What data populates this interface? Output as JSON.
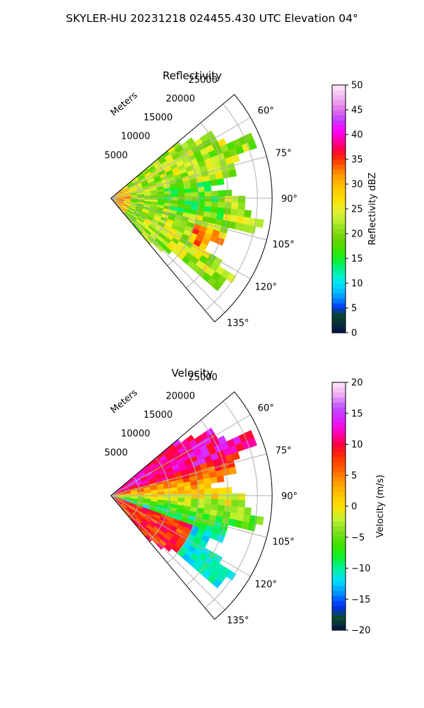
{
  "figure": {
    "title": "SKYLER-HU  20231218  024455.430 UTC Elevation 04°"
  },
  "chart_data": [
    {
      "type": "heatmap",
      "projection": "polar-sector",
      "title": "Reflectivity",
      "range_label": "Meters",
      "range_ticks": [
        "5000",
        "10000",
        "15000",
        "20000",
        "25000"
      ],
      "range_tick_values": [
        5000,
        10000,
        15000,
        20000,
        25000
      ],
      "rmax": 27500,
      "azimuth_ticks": [
        "60°",
        "75°",
        "90°",
        "105°",
        "120°",
        "135°"
      ],
      "azimuth_tick_values": [
        60,
        75,
        90,
        105,
        120,
        135
      ],
      "azimuth_range": [
        50,
        140
      ],
      "grid": true,
      "colorbar": {
        "label": "Reflectivity dBZ",
        "min": 0,
        "max": 50,
        "tick_values": [
          0,
          5,
          10,
          15,
          20,
          25,
          30,
          35,
          40,
          45,
          50
        ],
        "tick_labels": [
          "0",
          "5",
          "10",
          "15",
          "20",
          "25",
          "30",
          "35",
          "40",
          "45",
          "50"
        ],
        "stops": [
          [
            0,
            "#00134a"
          ],
          [
            2,
            "#0a2f3a"
          ],
          [
            4,
            "#0b4a2e"
          ],
          [
            5,
            "#0030ff"
          ],
          [
            7,
            "#0090ff"
          ],
          [
            9,
            "#00d0ff"
          ],
          [
            11,
            "#00f0e0"
          ],
          [
            13,
            "#00f08c"
          ],
          [
            15,
            "#10f020"
          ],
          [
            17,
            "#44e000"
          ],
          [
            19,
            "#6ad000"
          ],
          [
            21,
            "#90e020"
          ],
          [
            23,
            "#c4f030"
          ],
          [
            25,
            "#e8f030"
          ],
          [
            27,
            "#f8e000"
          ],
          [
            29,
            "#ffc800"
          ],
          [
            31,
            "#ffaa00"
          ],
          [
            33,
            "#ff7800"
          ],
          [
            35,
            "#ff3000"
          ],
          [
            37,
            "#ff0040"
          ],
          [
            39,
            "#ff00b0"
          ],
          [
            41,
            "#ff00ff"
          ],
          [
            43,
            "#c040ff"
          ],
          [
            45,
            "#e070e8"
          ],
          [
            47,
            "#f0a8f0"
          ],
          [
            50,
            "#fde8fa"
          ]
        ]
      },
      "field_description": "mostly 18-28 dBZ echoes, pockets of 30-38 dBZ near radar and to the south-east"
    },
    {
      "type": "heatmap",
      "projection": "polar-sector",
      "title": "Velocity",
      "range_label": "Meters",
      "range_ticks": [
        "5000",
        "10000",
        "15000",
        "20000",
        "25000"
      ],
      "range_tick_values": [
        5000,
        10000,
        15000,
        20000,
        25000
      ],
      "rmax": 27500,
      "azimuth_ticks": [
        "60°",
        "75°",
        "90°",
        "105°",
        "120°",
        "135°"
      ],
      "azimuth_tick_values": [
        60,
        75,
        90,
        105,
        120,
        135
      ],
      "azimuth_range": [
        50,
        140
      ],
      "grid": true,
      "colorbar": {
        "label": "Velocity (m/s)",
        "min": -20,
        "max": 20,
        "tick_values": [
          -20,
          -15,
          -10,
          -5,
          0,
          5,
          10,
          15,
          20
        ],
        "tick_labels": [
          "−20",
          "−15",
          "−10",
          "−5",
          "0",
          "5",
          "10",
          "15",
          "20"
        ],
        "stops": [
          [
            -20,
            "#00134a"
          ],
          [
            -18,
            "#0b4a2e"
          ],
          [
            -16,
            "#0030ff"
          ],
          [
            -14,
            "#0090ff"
          ],
          [
            -12,
            "#00e0ff"
          ],
          [
            -10,
            "#00f0a0"
          ],
          [
            -8,
            "#10f020"
          ],
          [
            -6,
            "#44e000"
          ],
          [
            -4,
            "#80e020"
          ],
          [
            -2,
            "#c4f030"
          ],
          [
            0,
            "#ffe000"
          ],
          [
            2,
            "#ffc000"
          ],
          [
            4,
            "#ff9a00"
          ],
          [
            6,
            "#ff6000"
          ],
          [
            8,
            "#ff3000"
          ],
          [
            10,
            "#ff0040"
          ],
          [
            12,
            "#ff00c0"
          ],
          [
            14,
            "#e020ff"
          ],
          [
            16,
            "#c050ff"
          ],
          [
            18,
            "#f0a8f0"
          ],
          [
            20,
            "#fde8fa"
          ]
        ]
      },
      "field_description": "receding (+) flow toward the north-east, approaching (−) flow toward the south-east"
    }
  ]
}
